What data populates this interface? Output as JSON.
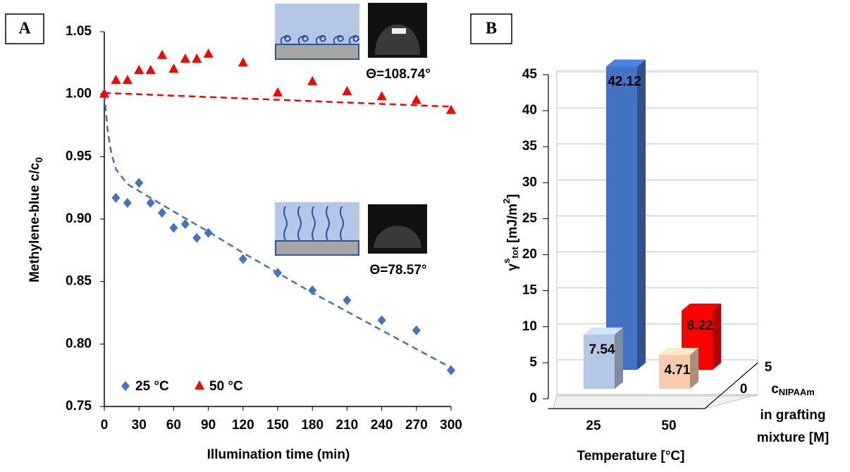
{
  "chart_data": [
    {
      "type": "scatter",
      "panel_label": "A",
      "x_label": "Illumination  time (min)",
      "y_label": "Methylene-blue c/c",
      "y_label_sub": "0",
      "xlim": [
        0,
        300
      ],
      "xticks": [
        0,
        30,
        60,
        90,
        120,
        150,
        180,
        210,
        240,
        270,
        300
      ],
      "ylim": [
        0.75,
        1.05
      ],
      "yticks": [
        0.75,
        {
          "value": 0.8,
          "label": "0.80"
        },
        0.85,
        {
          "value": 0.9,
          "label": "0.90"
        },
        0.95,
        {
          "value": 1,
          "label": "1.00"
        },
        1.05
      ],
      "legend": "lower left",
      "series": [
        {
          "name": "25 °C",
          "color": "#4472c4",
          "marker": "diamond",
          "x": [
            0,
            10,
            20,
            30,
            40,
            50,
            60,
            70,
            80,
            90,
            120,
            150,
            180,
            210,
            240,
            270,
            300
          ],
          "values": [
            1.0,
            0.917,
            0.913,
            0.929,
            0.913,
            0.905,
            0.893,
            0.896,
            0.885,
            0.889,
            0.868,
            0.857,
            0.843,
            0.835,
            0.819,
            0.811,
            0.779
          ]
        },
        {
          "name": "50 °C",
          "color": "#ff0000",
          "marker": "triangle",
          "x": [
            0,
            10,
            20,
            30,
            40,
            50,
            60,
            70,
            80,
            90,
            120,
            150,
            180,
            210,
            240,
            270,
            300
          ],
          "values": [
            1.0,
            1.011,
            1.011,
            1.019,
            1.019,
            1.031,
            1.02,
            1.028,
            1.028,
            1.032,
            1.025,
            1.001,
            1.01,
            1.002,
            0.998,
            0.995,
            0.987
          ]
        }
      ],
      "fits": [
        {
          "color": "#4472c4",
          "x": [
            0,
            3,
            6,
            10,
            20,
            40,
            60,
            90,
            120,
            150,
            180,
            210,
            240,
            270,
            300
          ],
          "values": [
            1.0,
            0.97,
            0.953,
            0.94,
            0.928,
            0.917,
            0.906,
            0.89,
            0.873,
            0.857,
            0.841,
            0.826,
            0.811,
            0.796,
            0.781
          ]
        },
        {
          "color": "#ff0000",
          "x": [
            0,
            300
          ],
          "values": [
            1.001,
            0.99
          ]
        }
      ],
      "annotations": [
        "Θ=108.74°",
        "Θ=78.57°"
      ]
    },
    {
      "type": "bar3d",
      "panel_label": "B",
      "categories": [
        "25",
        "50"
      ],
      "x_label": "Temperature [°C]",
      "y_label": "γ",
      "y_label_sup": "s",
      "y_label_sub": "tot",
      "y_label_rest": " [mJ/m",
      "y_label_sup2": "2",
      "y_label_end": "]",
      "depth_label": "c",
      "depth_label_sub": "NIPAAm",
      "depth_label_lines": [
        "in grafting",
        "mixture [M]"
      ],
      "ylim": [
        0,
        45
      ],
      "yticks": [
        0,
        5,
        10,
        15,
        20,
        25,
        30,
        35,
        40,
        45
      ],
      "series": [
        {
          "name": "0",
          "colors": [
            "#b4c7e7",
            "#f8cbad"
          ],
          "values": [
            7.54,
            4.71
          ]
        },
        {
          "name": "5",
          "colors": [
            "#4472c4",
            "#ff0000"
          ],
          "values": [
            42.12,
            8.22
          ]
        }
      ]
    }
  ]
}
